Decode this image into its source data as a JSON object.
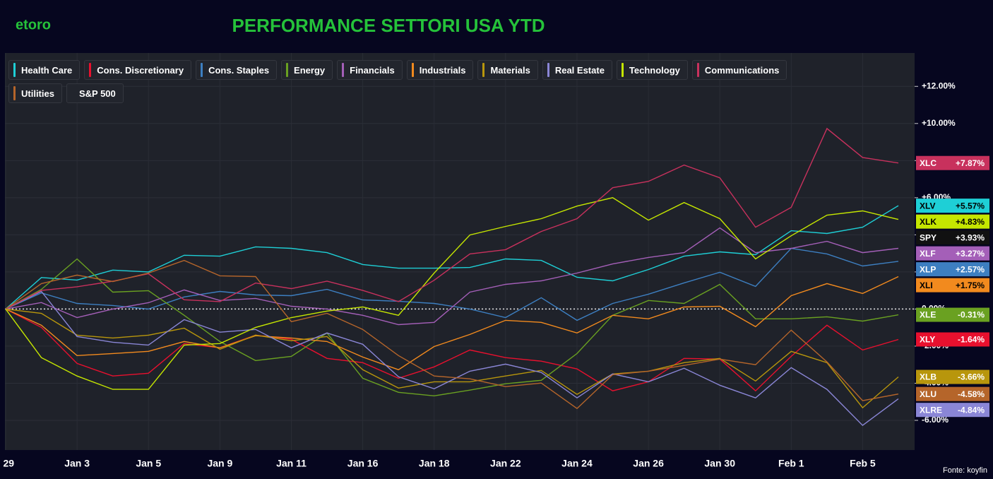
{
  "logo": "etoro",
  "source": "Fonte: koyfin",
  "chart_data": {
    "type": "line",
    "title": "PERFORMANCE SETTORI USA YTD",
    "categories": [
      ": 29",
      null,
      "Jan 3",
      null,
      "Jan 5",
      null,
      "Jan 9",
      null,
      "Jan 11",
      null,
      "Jan 16",
      null,
      "Jan 18",
      null,
      "Jan 22",
      null,
      "Jan 24",
      null,
      "Jan 26",
      null,
      "Jan 30",
      null,
      "Feb 1",
      null,
      "Feb 5",
      null
    ],
    "ylim": [
      -7.6,
      13.8
    ],
    "yticks": [
      {
        "value": -6,
        "label": "-6.00%"
      },
      {
        "value": -4,
        "label": "-4.00%"
      },
      {
        "value": -2,
        "label": "-2.00%"
      },
      {
        "value": 0,
        "label": "0.00%"
      },
      {
        "value": 2,
        "label": "+2.00%"
      },
      {
        "value": 4,
        "label": "+4.00%"
      },
      {
        "value": 6,
        "label": "+6.00%"
      },
      {
        "value": 8,
        "label": "+8.00%"
      },
      {
        "value": 10,
        "label": "+10.00%"
      },
      {
        "value": 12,
        "label": "+12.00%"
      }
    ],
    "grid": true,
    "series": [
      {
        "name": "Health Care",
        "ticker": "XLV",
        "end_label": "+5.57%",
        "color": "#1ecfd6",
        "values": [
          0,
          1.7,
          1.56,
          2.1,
          2.0,
          2.9,
          2.85,
          3.35,
          3.27,
          3.04,
          2.4,
          2.2,
          2.2,
          2.24,
          2.7,
          2.62,
          1.71,
          1.52,
          2.13,
          2.85,
          3.08,
          2.93,
          4.22,
          4.07,
          4.41,
          5.57
        ]
      },
      {
        "name": "Cons. Discretionary",
        "ticker": "XLY",
        "end_label": "-1.64%",
        "color": "#e8102e",
        "values": [
          0,
          -0.99,
          -2.93,
          -3.61,
          -3.46,
          -1.86,
          -2.09,
          -1.41,
          -1.63,
          -2.66,
          -2.89,
          -3.73,
          -3.12,
          -2.21,
          -2.62,
          -2.81,
          -3.23,
          -4.41,
          -3.92,
          -2.66,
          -2.7,
          -4.41,
          -2.55,
          -0.87,
          -2.21,
          -1.64
        ]
      },
      {
        "name": "Cons. Staples",
        "ticker": "XLP",
        "end_label": "+2.57%",
        "color": "#3d7fc1",
        "values": [
          0,
          0.87,
          0.3,
          0.19,
          0,
          0.65,
          0.95,
          0.76,
          0.72,
          1.06,
          0.49,
          0.42,
          0.3,
          0,
          -0.46,
          0.61,
          -0.61,
          0.3,
          0.8,
          1.41,
          1.98,
          1.22,
          3.27,
          2.97,
          2.32,
          2.57
        ]
      },
      {
        "name": "Energy",
        "ticker": "XLE",
        "end_label": "-0.31%",
        "color": "#6aa121",
        "values": [
          0,
          1.06,
          2.7,
          0.91,
          0.99,
          -0.34,
          -1.75,
          -2.78,
          -2.55,
          -1.29,
          -3.73,
          -4.49,
          -4.68,
          -4.37,
          -4.03,
          -3.84,
          -2.4,
          -0.34,
          0.46,
          0.3,
          1.33,
          -0.53,
          -0.53,
          -0.42,
          -0.65,
          -0.31
        ]
      },
      {
        "name": "Financials",
        "ticker": "XLF",
        "end_label": "+3.27%",
        "color": "#a45fb8",
        "values": [
          0,
          0.35,
          -0.46,
          0,
          0.34,
          1.03,
          0.46,
          0.57,
          0.15,
          0,
          -0.34,
          -0.84,
          -0.72,
          0.91,
          1.33,
          1.52,
          1.94,
          2.43,
          2.78,
          3.04,
          4.37,
          3.04,
          3.27,
          3.65,
          3.04,
          3.27
        ]
      },
      {
        "name": "Industrials",
        "ticker": "XLI",
        "end_label": "+1.75%",
        "color": "#f28a1e",
        "values": [
          0,
          -0.87,
          -2.51,
          -2.4,
          -2.28,
          -1.75,
          -2.09,
          -1.44,
          -1.56,
          -1.75,
          -2.59,
          -3.27,
          -2.02,
          -1.37,
          -0.61,
          -0.72,
          -1.29,
          -0.34,
          -0.53,
          0.11,
          0.15,
          -0.95,
          0.72,
          1.37,
          0.84,
          1.75
        ]
      },
      {
        "name": "Materials",
        "ticker": "XLB",
        "end_label": "-3.66%",
        "color": "#b8960c",
        "values": [
          0,
          -0.23,
          -1.41,
          -1.56,
          -1.41,
          -1.03,
          -2.17,
          -1.41,
          -1.71,
          -1.48,
          -3.27,
          -4.26,
          -3.92,
          -3.92,
          -3.61,
          -3.31,
          -4.6,
          -3.5,
          -3.35,
          -2.89,
          -2.66,
          -3.88,
          -2.28,
          -2.89,
          -5.32,
          -3.66
        ]
      },
      {
        "name": "Real Estate",
        "ticker": "XLRE",
        "end_label": "-4.84%",
        "color": "#8a86d6",
        "values": [
          0,
          0.95,
          -1.48,
          -1.79,
          -1.94,
          -0.57,
          -1.25,
          -1.1,
          -2.09,
          -1.29,
          -1.9,
          -3.65,
          -4.3,
          -3.35,
          -2.97,
          -3.42,
          -4.79,
          -3.5,
          -3.92,
          -3.19,
          -4.11,
          -4.79,
          -3.16,
          -4.33,
          -6.27,
          -4.84
        ]
      },
      {
        "name": "Technology",
        "ticker": "XLK",
        "end_label": "+4.83%",
        "color": "#c5e600",
        "values": [
          0,
          -2.62,
          -3.61,
          -4.33,
          -4.33,
          -1.94,
          -1.86,
          -0.99,
          -0.46,
          -0.11,
          0.11,
          -0.34,
          1.94,
          3.99,
          4.45,
          4.87,
          5.55,
          6.0,
          4.79,
          5.74,
          4.87,
          2.7,
          3.95,
          5.06,
          5.29,
          4.83
        ]
      },
      {
        "name": "Communications",
        "ticker": "XLC",
        "end_label": "+7.87%",
        "color": "#c8315d",
        "values": [
          0,
          1.0,
          1.2,
          1.5,
          1.9,
          0.5,
          0.4,
          1.4,
          1.1,
          1.5,
          1.0,
          0.4,
          1.55,
          2.97,
          3.2,
          4.18,
          4.87,
          6.54,
          6.88,
          7.76,
          7.07,
          4.41,
          5.48,
          9.73,
          8.17,
          7.87
        ]
      },
      {
        "name": "Utilities",
        "ticker": "XLU",
        "end_label": "-4.58%",
        "color": "#b5652a",
        "values": [
          0,
          1.37,
          1.83,
          1.48,
          1.94,
          2.62,
          1.79,
          1.75,
          -0.68,
          -0.23,
          -1.1,
          -2.51,
          -3.61,
          -3.76,
          -4.18,
          -3.99,
          -5.36,
          -3.54,
          -3.35,
          -3.04,
          -2.7,
          -3.0,
          -1.14,
          -2.85,
          -4.94,
          -4.58
        ]
      },
      {
        "name": "S&P 500",
        "ticker": "SPY",
        "end_label": "+3.93%",
        "color": "#111111",
        "values": [
          null,
          null,
          null,
          null,
          null,
          null,
          null,
          null,
          null,
          null,
          null,
          null,
          null,
          null,
          null,
          null,
          null,
          null,
          null,
          null,
          null,
          null,
          null,
          null,
          null,
          3.93
        ]
      }
    ]
  }
}
